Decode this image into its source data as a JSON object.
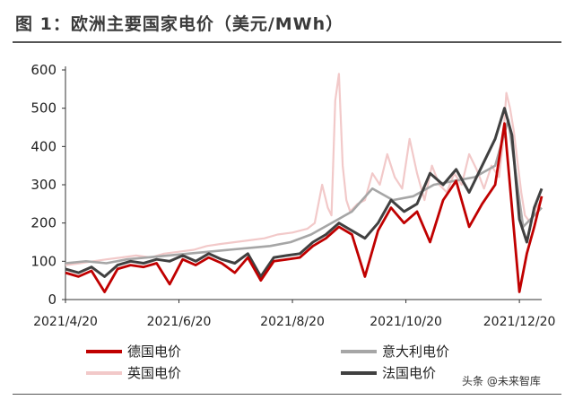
{
  "title": "图 1：欧洲主要国家电价（美元/MWh）",
  "watermark": "头条 @未来智库",
  "chart_data": {
    "type": "line",
    "title": "图 1：欧洲主要国家电价（美元/MWh）",
    "xlabel": "",
    "ylabel": "",
    "ylim": [
      0,
      600
    ],
    "yticks": [
      0,
      100,
      200,
      300,
      400,
      500,
      600
    ],
    "xlim": [
      "2021-04-20",
      "2022-01-01"
    ],
    "xticks": [
      "2021/4/20",
      "2021/6/20",
      "2021/8/20",
      "2021/10/20",
      "2021/12/20"
    ],
    "grid": false,
    "legend": "bottom",
    "series": [
      {
        "name": "英国电价",
        "color": "#f2c9c9",
        "x": [
          "2021-04-20",
          "2021-04-28",
          "2021-05-05",
          "2021-05-12",
          "2021-05-20",
          "2021-05-28",
          "2021-06-05",
          "2021-06-12",
          "2021-06-20",
          "2021-06-28",
          "2021-07-05",
          "2021-07-12",
          "2021-07-20",
          "2021-07-28",
          "2021-08-05",
          "2021-08-12",
          "2021-08-20",
          "2021-08-28",
          "2021-09-01",
          "2021-09-05",
          "2021-09-08",
          "2021-09-10",
          "2021-09-12",
          "2021-09-14",
          "2021-09-16",
          "2021-09-18",
          "2021-09-20",
          "2021-09-24",
          "2021-09-28",
          "2021-10-02",
          "2021-10-06",
          "2021-10-10",
          "2021-10-14",
          "2021-10-18",
          "2021-10-22",
          "2021-10-26",
          "2021-10-30",
          "2021-11-03",
          "2021-11-07",
          "2021-11-11",
          "2021-11-15",
          "2021-11-19",
          "2021-11-23",
          "2021-11-27",
          "2021-12-01",
          "2021-12-05",
          "2021-12-09",
          "2021-12-11",
          "2021-12-13",
          "2021-12-15",
          "2021-12-17",
          "2021-12-19",
          "2021-12-21",
          "2021-12-23",
          "2021-12-26",
          "2021-12-29",
          "2022-01-01"
        ],
        "values": [
          90,
          95,
          100,
          105,
          110,
          115,
          110,
          120,
          125,
          130,
          140,
          145,
          150,
          155,
          160,
          170,
          175,
          185,
          200,
          300,
          240,
          220,
          520,
          590,
          350,
          260,
          230,
          250,
          260,
          330,
          300,
          380,
          320,
          290,
          420,
          330,
          260,
          350,
          300,
          280,
          330,
          300,
          380,
          340,
          290,
          350,
          320,
          400,
          540,
          500,
          440,
          360,
          280,
          220,
          200,
          240,
          260
        ]
      },
      {
        "name": "意大利电价",
        "color": "#a6a6a6",
        "x": [
          "2021-04-20",
          "2021-05-01",
          "2021-05-12",
          "2021-05-23",
          "2021-06-03",
          "2021-06-14",
          "2021-06-25",
          "2021-07-06",
          "2021-07-17",
          "2021-07-28",
          "2021-08-08",
          "2021-08-19",
          "2021-08-30",
          "2021-09-10",
          "2021-09-21",
          "2021-10-02",
          "2021-10-13",
          "2021-10-24",
          "2021-11-04",
          "2021-11-15",
          "2021-11-26",
          "2021-12-07",
          "2021-12-14",
          "2021-12-18",
          "2021-12-22",
          "2021-12-26",
          "2022-01-01"
        ],
        "values": [
          95,
          100,
          95,
          105,
          110,
          115,
          120,
          125,
          130,
          135,
          140,
          150,
          170,
          200,
          230,
          290,
          260,
          270,
          300,
          310,
          320,
          350,
          470,
          330,
          190,
          210,
          240
        ]
      },
      {
        "name": "法国电价",
        "color": "#404040",
        "x": [
          "2021-04-20",
          "2021-04-27",
          "2021-05-04",
          "2021-05-11",
          "2021-05-18",
          "2021-05-25",
          "2021-06-01",
          "2021-06-08",
          "2021-06-15",
          "2021-06-22",
          "2021-06-29",
          "2021-07-06",
          "2021-07-13",
          "2021-07-20",
          "2021-07-27",
          "2021-08-03",
          "2021-08-10",
          "2021-08-17",
          "2021-08-24",
          "2021-08-31",
          "2021-09-07",
          "2021-09-14",
          "2021-09-21",
          "2021-09-28",
          "2021-10-05",
          "2021-10-12",
          "2021-10-19",
          "2021-10-26",
          "2021-11-02",
          "2021-11-09",
          "2021-11-16",
          "2021-11-23",
          "2021-11-30",
          "2021-12-07",
          "2021-12-12",
          "2021-12-16",
          "2021-12-20",
          "2021-12-24",
          "2021-12-28",
          "2022-01-01"
        ],
        "values": [
          80,
          70,
          85,
          60,
          90,
          100,
          95,
          105,
          100,
          115,
          100,
          120,
          105,
          95,
          120,
          60,
          110,
          115,
          120,
          150,
          170,
          200,
          180,
          160,
          200,
          260,
          230,
          250,
          330,
          300,
          340,
          280,
          350,
          420,
          500,
          430,
          210,
          150,
          240,
          290
        ]
      },
      {
        "name": "德国电价",
        "color": "#c00000",
        "x": [
          "2021-04-20",
          "2021-04-27",
          "2021-05-04",
          "2021-05-11",
          "2021-05-18",
          "2021-05-25",
          "2021-06-01",
          "2021-06-08",
          "2021-06-15",
          "2021-06-22",
          "2021-06-29",
          "2021-07-06",
          "2021-07-13",
          "2021-07-20",
          "2021-07-27",
          "2021-08-03",
          "2021-08-10",
          "2021-08-17",
          "2021-08-24",
          "2021-08-31",
          "2021-09-07",
          "2021-09-14",
          "2021-09-21",
          "2021-09-28",
          "2021-10-05",
          "2021-10-12",
          "2021-10-19",
          "2021-10-26",
          "2021-11-02",
          "2021-11-09",
          "2021-11-16",
          "2021-11-23",
          "2021-11-30",
          "2021-12-07",
          "2021-12-12",
          "2021-12-16",
          "2021-12-20",
          "2021-12-24",
          "2021-12-28",
          "2022-01-01"
        ],
        "values": [
          70,
          60,
          75,
          20,
          80,
          90,
          85,
          95,
          40,
          105,
          90,
          110,
          95,
          70,
          110,
          50,
          100,
          105,
          110,
          140,
          160,
          190,
          170,
          60,
          180,
          240,
          200,
          230,
          150,
          260,
          310,
          190,
          250,
          300,
          460,
          240,
          20,
          120,
          190,
          270
        ]
      }
    ]
  }
}
